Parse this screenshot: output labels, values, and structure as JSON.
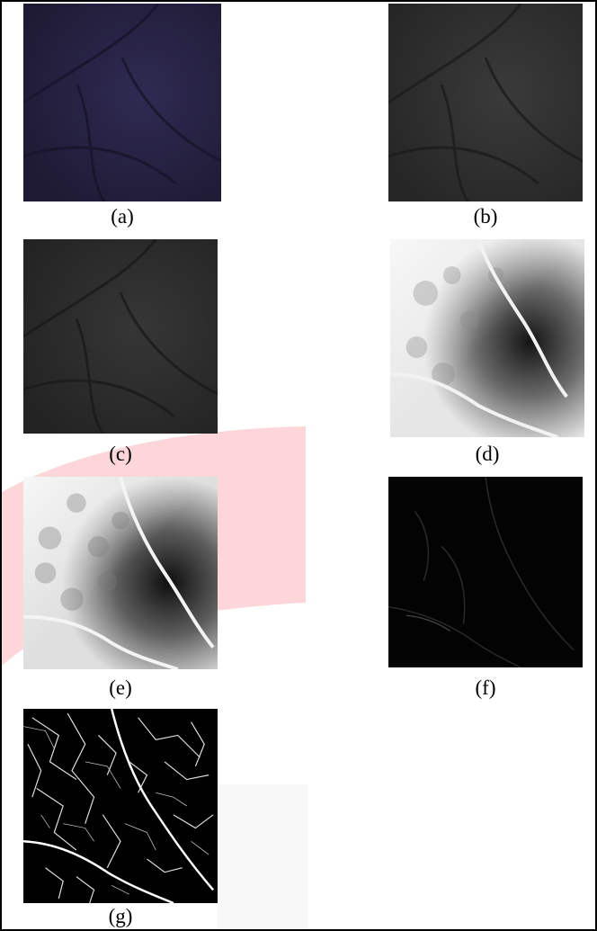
{
  "figure": {
    "panels": [
      {
        "id": "a",
        "label": "(a)",
        "tone": "purple-dark"
      },
      {
        "id": "b",
        "label": "(b)",
        "tone": "gray-dark"
      },
      {
        "id": "c",
        "label": "(c)",
        "tone": "gray-dark"
      },
      {
        "id": "d",
        "label": "(d)",
        "tone": "bright-enhanced"
      },
      {
        "id": "e",
        "label": "(e)",
        "tone": "bright-enhanced"
      },
      {
        "id": "f",
        "label": "(f)",
        "tone": "black-faint"
      },
      {
        "id": "g",
        "label": "(g)",
        "tone": "binary-veins"
      }
    ]
  }
}
